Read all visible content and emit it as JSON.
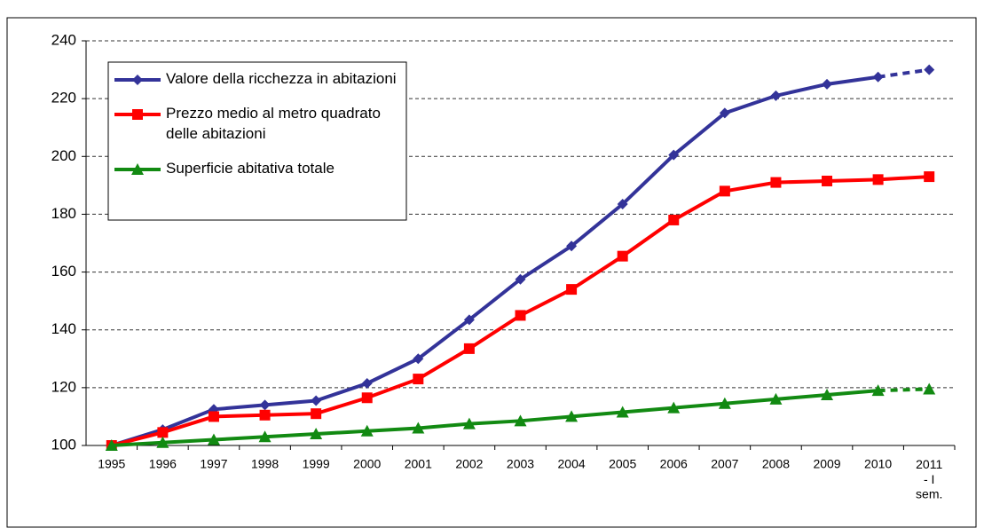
{
  "chart_data": {
    "type": "line",
    "categories": [
      "1995",
      "1996",
      "1997",
      "1998",
      "1999",
      "2000",
      "2001",
      "2002",
      "2003",
      "2004",
      "2005",
      "2006",
      "2007",
      "2008",
      "2009",
      "2010",
      "2011\n- I\nsem."
    ],
    "series": [
      {
        "name": "Valore della ricchezza in abitazioni",
        "color": "#333399",
        "marker": "diamond",
        "dash_last_segment": true,
        "values": [
          100,
          105.5,
          112.5,
          114,
          115.5,
          121.5,
          130,
          143.5,
          157.5,
          169,
          183.5,
          200.5,
          215,
          221,
          225,
          227.5,
          230
        ]
      },
      {
        "name": "Prezzo medio al metro quadrato delle abitazioni",
        "color": "#ff0000",
        "marker": "square",
        "dash_last_segment": false,
        "values": [
          100,
          104.5,
          110,
          110.5,
          111,
          116.5,
          123,
          133.5,
          145,
          154,
          165.5,
          178,
          188,
          191,
          191.5,
          192,
          193
        ]
      },
      {
        "name": "Superficie abitativa totale",
        "color": "#128a12",
        "marker": "triangle",
        "dash_last_segment": true,
        "values": [
          100,
          101,
          102,
          103,
          104,
          105,
          106,
          107.5,
          108.5,
          110,
          111.5,
          113,
          114.5,
          116,
          117.5,
          119,
          119.5
        ]
      }
    ],
    "ylim": [
      100,
      240
    ],
    "yticks": [
      100,
      120,
      140,
      160,
      180,
      200,
      220,
      240
    ],
    "grid": true,
    "legend": "upper left"
  }
}
